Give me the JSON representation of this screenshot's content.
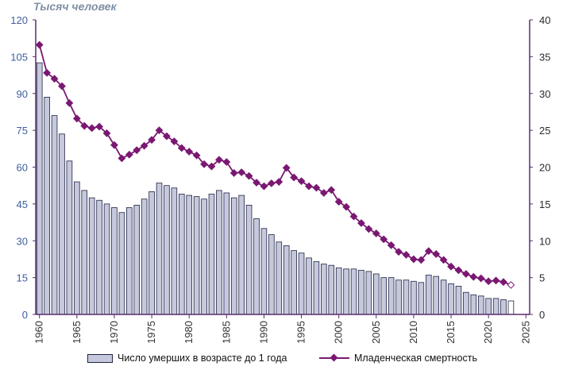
{
  "chart_data": {
    "type": "bar+line",
    "unit_label": "Тысяч человек",
    "y_left": {
      "min": 0,
      "max": 120,
      "ticks": [
        "0",
        "15",
        "30",
        "45",
        "60",
        "75",
        "90",
        "105",
        "120"
      ]
    },
    "y_right": {
      "min": 0,
      "max": 40,
      "ticks": [
        "0",
        "5",
        "10",
        "15",
        "20",
        "25",
        "30",
        "35",
        "40"
      ]
    },
    "x_ticks": [
      "1960",
      "1965",
      "1970",
      "1975",
      "1980",
      "1985",
      "1990",
      "1995",
      "2000",
      "2005",
      "2010",
      "2015",
      "2020",
      "2025"
    ],
    "years": [
      1960,
      1961,
      1962,
      1963,
      1964,
      1965,
      1966,
      1967,
      1968,
      1969,
      1970,
      1971,
      1972,
      1973,
      1974,
      1975,
      1976,
      1977,
      1978,
      1979,
      1980,
      1981,
      1982,
      1983,
      1984,
      1985,
      1986,
      1987,
      1988,
      1989,
      1990,
      1991,
      1992,
      1993,
      1994,
      1995,
      1996,
      1997,
      1998,
      1999,
      2000,
      2001,
      2002,
      2003,
      2004,
      2005,
      2006,
      2007,
      2008,
      2009,
      2010,
      2011,
      2012,
      2013,
      2014,
      2015,
      2016,
      2017,
      2018,
      2019,
      2020,
      2021,
      2022,
      2023
    ],
    "series": [
      {
        "name": "Число  умерших в возрасте до 1 года",
        "kind": "bar",
        "color": "#c6c9de",
        "values": [
          102.5,
          88.5,
          81,
          73.5,
          62.5,
          54,
          50.5,
          47.5,
          46.5,
          45,
          43.5,
          41.5,
          43.5,
          44.5,
          47,
          50,
          53.5,
          52.5,
          51.5,
          49,
          48.5,
          48,
          47,
          49,
          50.5,
          49.5,
          47.5,
          48.5,
          44.5,
          39,
          35,
          32.5,
          29.5,
          28,
          26,
          25,
          23,
          21.5,
          20.5,
          20,
          19,
          18.5,
          18.5,
          18,
          17.5,
          16.5,
          15,
          15,
          14,
          14,
          13.5,
          13,
          16,
          15.5,
          14,
          12.5,
          11.5,
          9,
          8,
          7.5,
          6.5,
          6.5,
          6,
          5.5
        ]
      },
      {
        "name": "Младенческая  смертность",
        "kind": "line",
        "color": "#7a1872",
        "values": [
          36.6,
          32.8,
          32,
          31,
          28.7,
          26.6,
          25.6,
          25.3,
          25.5,
          24.6,
          23,
          21.2,
          21.7,
          22.3,
          22.9,
          23.7,
          25,
          24.2,
          23.5,
          22.6,
          22.1,
          21.6,
          20.4,
          20.1,
          21,
          20.7,
          19.2,
          19.3,
          18.8,
          17.9,
          17.4,
          17.8,
          18,
          19.9,
          18.6,
          18.1,
          17.4,
          17.2,
          16.5,
          16.9,
          15.3,
          14.6,
          13.3,
          12.4,
          11.6,
          11,
          10.2,
          9.4,
          8.5,
          8.1,
          7.5,
          7.4,
          8.6,
          8.2,
          7.4,
          6.5,
          6,
          5.5,
          5.1,
          4.9,
          4.5,
          4.6,
          4.4,
          4
        ]
      }
    ],
    "legend": [
      "Число  умерших в возрасте до 1 года",
      "Младенческая  смертность"
    ],
    "legend_position": "bottom",
    "grid": false,
    "axis_color": "#5b2b6e"
  }
}
